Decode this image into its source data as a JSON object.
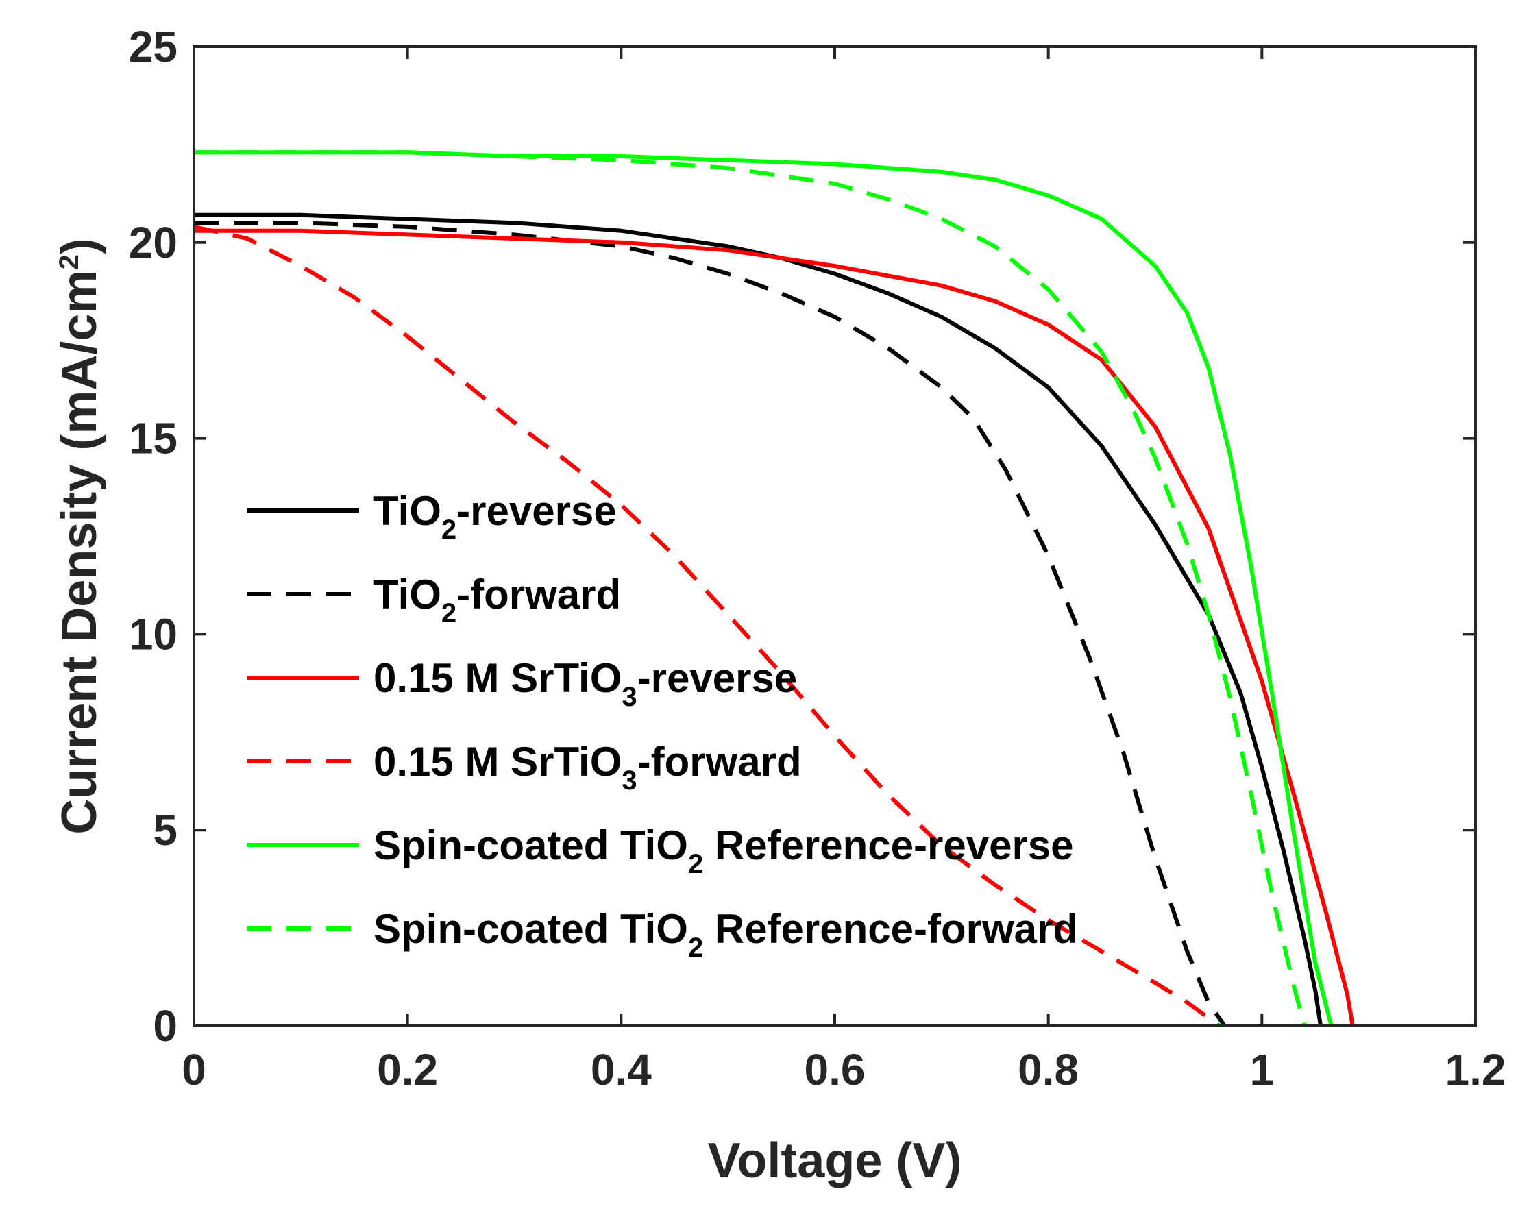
{
  "chart_data": {
    "type": "line",
    "title": "",
    "xlabel": "Voltage (V)",
    "ylabel": "Current Density (mA/cm",
    "ylabel_superscript": "2",
    "ylabel_close": ")",
    "xlim": [
      0,
      1.2
    ],
    "ylim": [
      0,
      25
    ],
    "x_ticks": [
      0,
      0.2,
      0.4,
      0.6,
      0.8,
      1,
      1.2
    ],
    "x_tick_labels": [
      "0",
      "0.2",
      "0.4",
      "0.6",
      "0.8",
      "1",
      "1.2"
    ],
    "y_ticks": [
      0,
      5,
      10,
      15,
      20,
      25
    ],
    "y_tick_labels": [
      "0",
      "5",
      "10",
      "15",
      "20",
      "25"
    ],
    "grid": false,
    "legend_position": "center-left",
    "series": [
      {
        "name": "TiO2-reverse",
        "legend_parts": [
          "TiO",
          "2",
          "-reverse"
        ],
        "color": "#000000",
        "dash": "solid",
        "x": [
          0,
          0.1,
          0.2,
          0.3,
          0.4,
          0.5,
          0.55,
          0.6,
          0.65,
          0.7,
          0.75,
          0.8,
          0.85,
          0.9,
          0.95,
          0.98,
          1.0,
          1.02,
          1.04,
          1.05,
          1.055
        ],
        "y": [
          20.7,
          20.7,
          20.6,
          20.5,
          20.3,
          19.9,
          19.6,
          19.2,
          18.7,
          18.1,
          17.3,
          16.3,
          14.8,
          12.8,
          10.5,
          8.5,
          6.6,
          4.5,
          2.2,
          0.9,
          0
        ]
      },
      {
        "name": "TiO2-forward",
        "legend_parts": [
          "TiO",
          "2",
          "-forward"
        ],
        "color": "#000000",
        "dash": "dashed",
        "x": [
          0,
          0.1,
          0.2,
          0.3,
          0.4,
          0.45,
          0.5,
          0.55,
          0.6,
          0.65,
          0.7,
          0.73,
          0.76,
          0.8,
          0.84,
          0.87,
          0.9,
          0.93,
          0.95,
          0.965
        ],
        "y": [
          20.5,
          20.5,
          20.4,
          20.2,
          19.9,
          19.6,
          19.2,
          18.7,
          18.1,
          17.3,
          16.3,
          15.5,
          14.2,
          12.0,
          9.3,
          7.0,
          4.3,
          1.9,
          0.6,
          0
        ]
      },
      {
        "name": "0.15 M SrTiO3-reverse",
        "legend_parts": [
          "0.15 M SrTiO",
          "3",
          "-reverse"
        ],
        "color": "#ff0000",
        "dash": "solid",
        "x": [
          0,
          0.1,
          0.2,
          0.3,
          0.4,
          0.5,
          0.6,
          0.7,
          0.75,
          0.8,
          0.85,
          0.9,
          0.95,
          1.0,
          1.03,
          1.06,
          1.08,
          1.085
        ],
        "y": [
          20.3,
          20.3,
          20.2,
          20.1,
          20.0,
          19.8,
          19.4,
          18.9,
          18.5,
          17.9,
          17.0,
          15.3,
          12.7,
          8.8,
          5.9,
          2.9,
          0.8,
          0
        ]
      },
      {
        "name": "0.15 M SrTiO3-forward",
        "legend_parts": [
          "0.15 M SrTiO",
          "3",
          "-forward"
        ],
        "color": "#ff0000",
        "dash": "dashed",
        "x": [
          0,
          0.05,
          0.1,
          0.15,
          0.2,
          0.25,
          0.3,
          0.35,
          0.4,
          0.45,
          0.5,
          0.55,
          0.6,
          0.65,
          0.7,
          0.75,
          0.8,
          0.85,
          0.9,
          0.93,
          0.96
        ],
        "y": [
          20.4,
          20.1,
          19.4,
          18.6,
          17.6,
          16.5,
          15.4,
          14.4,
          13.3,
          12.0,
          10.5,
          9.0,
          7.4,
          5.9,
          4.6,
          3.6,
          2.7,
          1.9,
          1.1,
          0.6,
          0
        ]
      },
      {
        "name": "Spin-coated TiO2 Reference-reverse",
        "legend_parts": [
          "Spin-coated TiO",
          "2",
          " Reference-reverse"
        ],
        "color": "#00ff00",
        "dash": "solid",
        "x": [
          0,
          0.1,
          0.2,
          0.3,
          0.4,
          0.5,
          0.6,
          0.7,
          0.75,
          0.8,
          0.85,
          0.9,
          0.93,
          0.95,
          0.97,
          0.99,
          1.01,
          1.03,
          1.05,
          1.065
        ],
        "y": [
          22.3,
          22.3,
          22.3,
          22.2,
          22.2,
          22.1,
          22.0,
          21.8,
          21.6,
          21.2,
          20.6,
          19.4,
          18.2,
          16.8,
          14.6,
          11.7,
          8.4,
          4.9,
          1.6,
          0
        ]
      },
      {
        "name": "Spin-coated TiO2 Reference-forward",
        "legend_parts": [
          "Spin-coated TiO",
          "2",
          " Reference-forward"
        ],
        "color": "#00ff00",
        "dash": "dashed",
        "x": [
          0,
          0.1,
          0.2,
          0.3,
          0.4,
          0.5,
          0.6,
          0.65,
          0.7,
          0.75,
          0.8,
          0.85,
          0.88,
          0.9,
          0.93,
          0.95,
          0.97,
          0.99,
          1.01,
          1.03,
          1.04
        ],
        "y": [
          22.3,
          22.3,
          22.3,
          22.2,
          22.1,
          21.9,
          21.5,
          21.1,
          20.6,
          19.9,
          18.8,
          17.2,
          15.7,
          14.5,
          12.3,
          10.5,
          8.4,
          5.9,
          3.3,
          1.0,
          0
        ]
      }
    ]
  }
}
